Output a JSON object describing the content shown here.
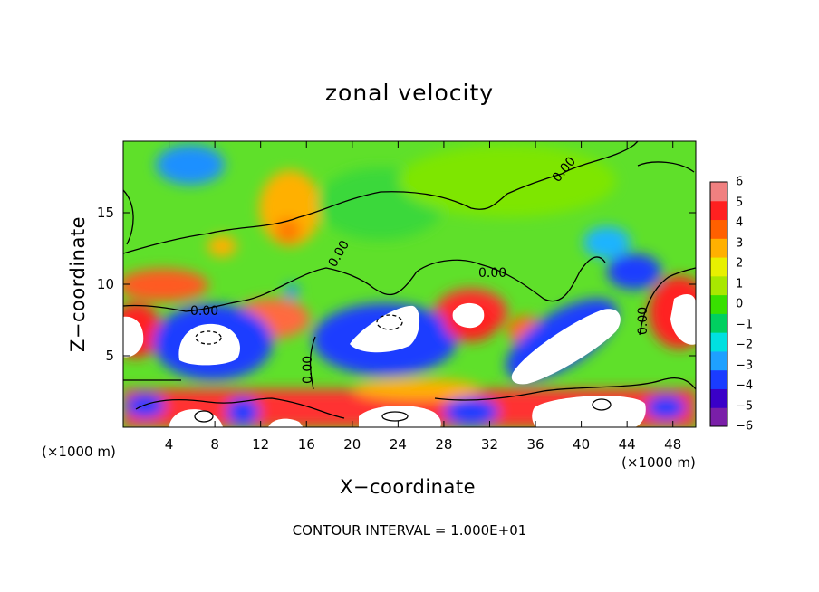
{
  "chart_data": {
    "type": "heatmap",
    "title": "zonal velocity",
    "xlabel": "X−coordinate",
    "ylabel": "Z−coordinate",
    "x_unit": "(×1000 m)",
    "y_unit": "(×1000 m)",
    "xlim": [
      0,
      50
    ],
    "ylim": [
      0,
      20
    ],
    "x_ticks": [
      "4",
      "8",
      "12",
      "16",
      "20",
      "24",
      "28",
      "32",
      "36",
      "40",
      "44",
      "48"
    ],
    "y_ticks": [
      "5",
      "10",
      "15"
    ],
    "contour_note": "CONTOUR INTERVAL = 1.000E+01",
    "contour_labels": [
      "0.00",
      "0.00",
      "0.00",
      "0.00",
      "0.00",
      "0.00"
    ],
    "colorbar": {
      "ticks": [
        "6",
        "5",
        "4",
        "3",
        "2",
        "1",
        "0",
        "−1",
        "−2",
        "−3",
        "−4",
        "−5",
        "−6"
      ],
      "range": [
        -6,
        6
      ]
    },
    "features": [
      {
        "x": 6.5,
        "z": 5.9,
        "value": -8
      },
      {
        "x": 24,
        "z": 6.3,
        "value": -8
      },
      {
        "x": 30,
        "z": 7.4,
        "value": -8
      },
      {
        "x": 40.5,
        "z": 6.5,
        "value": -8
      },
      {
        "x": 8,
        "z": 0.6,
        "value": 8
      },
      {
        "x": 13,
        "z": 0.6,
        "value": 7
      },
      {
        "x": 22,
        "z": 0.8,
        "value": 8
      },
      {
        "x": 41,
        "z": 1.0,
        "value": 8
      },
      {
        "x": 49,
        "z": 7.5,
        "value": 7
      },
      {
        "x": 1,
        "z": 6.5,
        "value": 7
      },
      {
        "x": 14.5,
        "z": 15.5,
        "value": 3
      },
      {
        "x": 6,
        "z": 18.5,
        "value": -3
      },
      {
        "x": 40,
        "z": 12.5,
        "value": -2
      },
      {
        "x": 43.5,
        "z": 10.5,
        "value": -4
      }
    ]
  },
  "labels": {
    "unit_left": "(×1000 m)",
    "unit_right": "(×1000 m)"
  },
  "colors": {
    "colorbar": [
      "#7a1fa8",
      "#3a00c8",
      "#1a3cff",
      "#1ea0ff",
      "#00e0e0",
      "#00d060",
      "#38e000",
      "#a8e800",
      "#e8f000",
      "#ffb000",
      "#ff6000",
      "#ff2020",
      "#f08080"
    ]
  }
}
